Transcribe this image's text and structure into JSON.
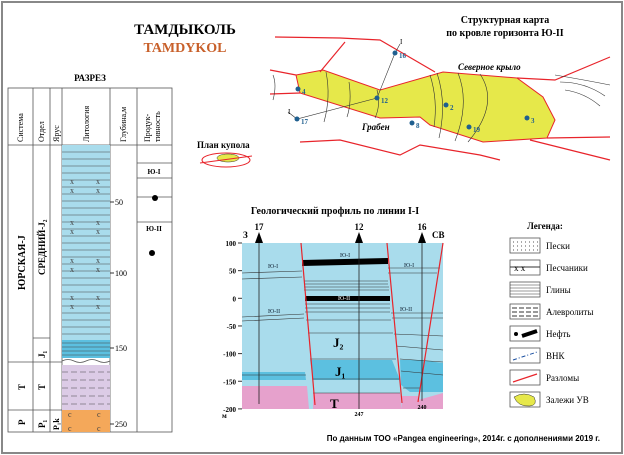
{
  "title": "ТАМДЫКОЛЬ",
  "title_latin": "TAMDYKOL",
  "section": {
    "title": "РАЗРЕЗ",
    "headers": [
      "Система",
      "Отдел",
      "Ярус",
      "Литология",
      "Глубина,м",
      "Продук-",
      "тивность"
    ],
    "system": [
      "ЮРСКАЯ-J",
      "Т",
      "P"
    ],
    "series": [
      "СРЕДНИЙ-J₂",
      "J₁",
      "Т",
      "P₁"
    ],
    "stage": [
      "P₁k"
    ],
    "depths": [
      "50",
      "100",
      "150",
      "250"
    ],
    "horizons": [
      "Ю-I",
      "Ю-II"
    ]
  },
  "map": {
    "title1": "Структурная карта",
    "title2": "по кровле горизонта Ю-II",
    "north_wing": "Северное крыло",
    "graben": "Грабен",
    "line_label": "I",
    "wells": [
      "4",
      "16",
      "12",
      "17",
      "2",
      "8",
      "19",
      "3"
    ],
    "dome_plan": "План купола"
  },
  "profile": {
    "title": "Геологический профиль по линии I-I",
    "west": "З",
    "east": "СВ",
    "wells": [
      "17",
      "12",
      "16"
    ],
    "well_depths": [
      "247",
      "240"
    ],
    "y_ticks": [
      "100",
      "50",
      "0",
      "-50",
      "-100",
      "-150",
      "-200"
    ],
    "y_unit": "м",
    "labels": [
      "Ю-I",
      "Ю-II",
      "J₂",
      "J₁",
      "Т"
    ]
  },
  "legend": {
    "title": "Легенда:",
    "items": [
      "Пески",
      "Песчаники",
      "Глины",
      "Алевролиты",
      "Нефть",
      "ВНК",
      "Разломы",
      "Залежи УВ"
    ]
  },
  "source": "По данным ТОО «Pangea engineering», 2014г. с дополнениями 2019 г.",
  "colors": {
    "water": "#a9dcec",
    "deep": "#5cc0e0",
    "triassic": "#e6a1cc",
    "permian": "#f4a85a",
    "oil_zone": "#e6e84a",
    "fault": "#e8242b",
    "title_accent": "#c8602a"
  }
}
